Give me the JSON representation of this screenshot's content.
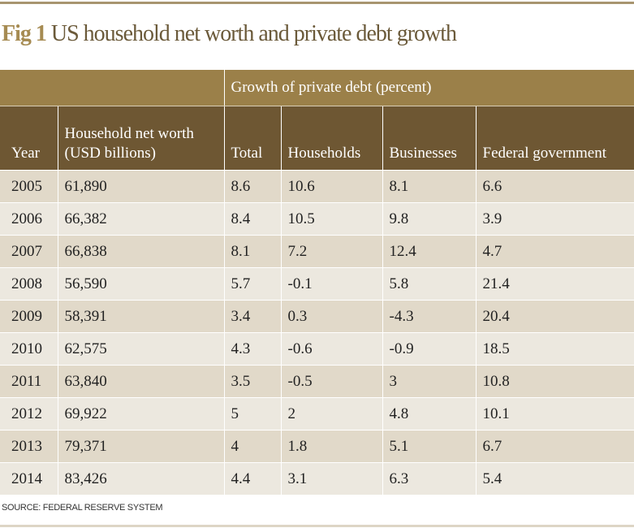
{
  "title": {
    "fig": "Fig 1",
    "text": "US household net worth and private debt growth"
  },
  "chart_data": {
    "type": "table",
    "title": "US household net worth and private debt growth",
    "group_header": "Growth of private debt (percent)",
    "columns": [
      "Year",
      "Household net worth (USD billions)",
      "Total",
      "Households",
      "Businesses",
      "Federal government"
    ],
    "rows": [
      [
        "2005",
        "61,890",
        "8.6",
        "10.6",
        "8.1",
        "6.6"
      ],
      [
        "2006",
        "66,382",
        "8.4",
        "10.5",
        "9.8",
        "3.9"
      ],
      [
        "2007",
        "66,838",
        "8.1",
        "7.2",
        "12.4",
        "4.7"
      ],
      [
        "2008",
        "56,590",
        "5.7",
        "-0.1",
        "5.8",
        "21.4"
      ],
      [
        "2009",
        "58,391",
        "3.4",
        "0.3",
        "-4.3",
        "20.4"
      ],
      [
        "2010",
        "62,575",
        "4.3",
        "-0.6",
        "-0.9",
        "18.5"
      ],
      [
        "2011",
        "63,840",
        "3.5",
        "-0.5",
        "3",
        "10.8"
      ],
      [
        "2012",
        "69,922",
        "5",
        "2",
        "4.8",
        "10.1"
      ],
      [
        "2013",
        "79,371",
        "4",
        "1.8",
        "5.1",
        "6.7"
      ],
      [
        "2014",
        "83,426",
        "4.4",
        "3.1",
        "6.3",
        "5.4"
      ]
    ]
  },
  "hnw_line1": "Household net worth",
  "hnw_line2": "(USD billions)",
  "source": "SOURCE: FEDERAL RESERVE SYSTEM",
  "colors": {
    "header_light": "#9b8049",
    "header_dark": "#6e5733",
    "row_a": "#e1d9c9",
    "row_b": "#ece8df"
  }
}
